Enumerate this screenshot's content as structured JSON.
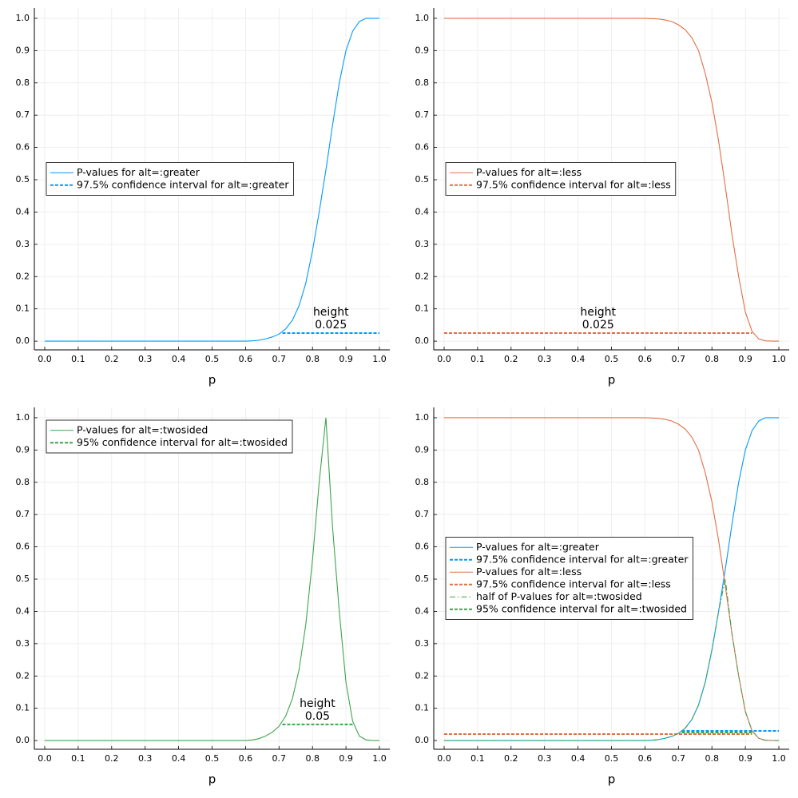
{
  "chart_data": [
    {
      "type": "line",
      "xlabel": "p",
      "legend": "left",
      "grid": true,
      "xlim": [
        -0.031,
        1.031
      ],
      "ylim": [
        -0.027,
        1.032
      ],
      "xticks": [
        {
          "value": 0,
          "label": "0.0"
        },
        0.1,
        0.2,
        0.3,
        0.4,
        0.5,
        0.6,
        0.7,
        0.8,
        0.9,
        {
          "value": 1,
          "label": "1.0"
        }
      ],
      "yticks": [
        {
          "value": 0,
          "label": "0.0"
        },
        0.1,
        0.2,
        0.3,
        0.4,
        0.5,
        0.6,
        0.7,
        0.8,
        0.9,
        {
          "value": 1,
          "label": "1.0"
        }
      ],
      "x": [
        0,
        0.1,
        0.2,
        0.3,
        0.4,
        0.5,
        0.6,
        0.62,
        0.64,
        0.66,
        0.68,
        0.7,
        0.72,
        0.74,
        0.76,
        0.78,
        0.8,
        0.82,
        0.84,
        0.86,
        0.88,
        0.9,
        0.92,
        0.94,
        0.96,
        0.98,
        1
      ],
      "series": [
        {
          "name": "P-values for alt=:greater",
          "color": "#009afa",
          "style": "solid",
          "values": [
            0,
            0,
            0,
            0,
            0,
            0,
            0,
            0.001,
            0.003,
            0.007,
            0.013,
            0.022,
            0.038,
            0.065,
            0.11,
            0.18,
            0.28,
            0.4,
            0.53,
            0.67,
            0.8,
            0.9,
            0.96,
            0.99,
            1,
            1,
            1
          ]
        },
        {
          "name": "97.5% confidence interval for alt=:greater",
          "color": "#009afa",
          "style": "dashed",
          "x": [
            0.71,
            1
          ],
          "values": [
            0.025,
            0.025
          ],
          "annotation": [
            "height",
            "0.025"
          ]
        }
      ]
    },
    {
      "type": "line",
      "xlabel": "p",
      "legend": "left",
      "grid": true,
      "xlim": [
        -0.031,
        1.031
      ],
      "ylim": [
        -0.027,
        1.032
      ],
      "xticks": [
        {
          "value": 0,
          "label": "0.0"
        },
        0.1,
        0.2,
        0.3,
        0.4,
        0.5,
        0.6,
        0.7,
        0.8,
        0.9,
        {
          "value": 1,
          "label": "1.0"
        }
      ],
      "yticks": [
        {
          "value": 0,
          "label": "0.0"
        },
        0.1,
        0.2,
        0.3,
        0.4,
        0.5,
        0.6,
        0.7,
        0.8,
        0.9,
        {
          "value": 1,
          "label": "1.0"
        }
      ],
      "x": [
        0,
        0.1,
        0.2,
        0.3,
        0.4,
        0.5,
        0.6,
        0.62,
        0.64,
        0.66,
        0.68,
        0.7,
        0.72,
        0.74,
        0.76,
        0.78,
        0.8,
        0.82,
        0.84,
        0.86,
        0.88,
        0.9,
        0.92,
        0.94,
        0.96,
        0.98,
        1
      ],
      "series": [
        {
          "name": "P-values for alt=:less",
          "color": "#e26f46",
          "style": "solid",
          "values": [
            1,
            1,
            1,
            1,
            1,
            1,
            1,
            0.999,
            0.998,
            0.995,
            0.99,
            0.98,
            0.965,
            0.94,
            0.9,
            0.83,
            0.74,
            0.62,
            0.48,
            0.33,
            0.2,
            0.09,
            0.03,
            0.007,
            0.001,
            0,
            0
          ]
        },
        {
          "name": "97.5% confidence interval for alt=:less",
          "color": "#e26f46",
          "style": "dashed",
          "x": [
            0,
            0.92
          ],
          "values": [
            0.025,
            0.025
          ],
          "annotation": [
            "height",
            "0.025"
          ]
        }
      ]
    },
    {
      "type": "line",
      "xlabel": "p",
      "legend": "top left",
      "grid": true,
      "xlim": [
        -0.031,
        1.031
      ],
      "ylim": [
        -0.027,
        1.032
      ],
      "xticks": [
        {
          "value": 0,
          "label": "0.0"
        },
        0.1,
        0.2,
        0.3,
        0.4,
        0.5,
        0.6,
        0.7,
        0.8,
        0.9,
        {
          "value": 1,
          "label": "1.0"
        }
      ],
      "yticks": [
        {
          "value": 0,
          "label": "0.0"
        },
        0.1,
        0.2,
        0.3,
        0.4,
        0.5,
        0.6,
        0.7,
        0.8,
        0.9,
        {
          "value": 1,
          "label": "1.0"
        }
      ],
      "x": [
        0,
        0.1,
        0.2,
        0.3,
        0.4,
        0.5,
        0.6,
        0.62,
        0.64,
        0.66,
        0.68,
        0.7,
        0.72,
        0.74,
        0.76,
        0.78,
        0.8,
        0.82,
        0.84,
        0.86,
        0.88,
        0.9,
        0.92,
        0.94,
        0.96,
        0.98,
        1
      ],
      "series": [
        {
          "name": "P-values for alt=:twosided",
          "color": "#3ea44e",
          "style": "solid",
          "values": [
            0,
            0,
            0,
            0,
            0,
            0,
            0,
            0.002,
            0.006,
            0.014,
            0.026,
            0.044,
            0.076,
            0.13,
            0.22,
            0.36,
            0.56,
            0.8,
            1,
            0.66,
            0.4,
            0.18,
            0.06,
            0.014,
            0.002,
            0,
            0
          ]
        },
        {
          "name": "95% confidence interval for alt=:twosided",
          "color": "#3ea44e",
          "style": "dashed",
          "x": [
            0.71,
            0.92
          ],
          "values": [
            0.05,
            0.05
          ],
          "annotation": [
            "height",
            "0.05"
          ]
        }
      ]
    },
    {
      "type": "line",
      "xlabel": "p",
      "legend": "left",
      "grid": true,
      "xlim": [
        -0.031,
        1.031
      ],
      "ylim": [
        -0.027,
        1.032
      ],
      "xticks": [
        {
          "value": 0,
          "label": "0.0"
        },
        0.1,
        0.2,
        0.3,
        0.4,
        0.5,
        0.6,
        0.7,
        0.8,
        0.9,
        {
          "value": 1,
          "label": "1.0"
        }
      ],
      "yticks": [
        {
          "value": 0,
          "label": "0.0"
        },
        0.1,
        0.2,
        0.3,
        0.4,
        0.5,
        0.6,
        0.7,
        0.8,
        0.9,
        {
          "value": 1,
          "label": "1.0"
        }
      ],
      "x": [
        0,
        0.1,
        0.2,
        0.3,
        0.4,
        0.5,
        0.6,
        0.62,
        0.64,
        0.66,
        0.68,
        0.7,
        0.72,
        0.74,
        0.76,
        0.78,
        0.8,
        0.82,
        0.84,
        0.86,
        0.88,
        0.9,
        0.92,
        0.94,
        0.96,
        0.98,
        1
      ],
      "series": [
        {
          "name": "P-values for alt=:greater",
          "color": "#009afa",
          "style": "solid",
          "values": [
            0,
            0,
            0,
            0,
            0,
            0,
            0,
            0.001,
            0.003,
            0.007,
            0.013,
            0.022,
            0.038,
            0.065,
            0.11,
            0.18,
            0.28,
            0.4,
            0.53,
            0.67,
            0.8,
            0.9,
            0.96,
            0.99,
            1,
            1,
            1
          ]
        },
        {
          "name": "97.5% confidence interval for alt=:greater",
          "color": "#009afa",
          "style": "dashed",
          "x": [
            0.71,
            1
          ],
          "values": [
            0.03,
            0.03
          ]
        },
        {
          "name": "P-values for alt=:less",
          "color": "#e26f46",
          "style": "solid",
          "values": [
            1,
            1,
            1,
            1,
            1,
            1,
            1,
            0.999,
            0.998,
            0.995,
            0.99,
            0.98,
            0.965,
            0.94,
            0.9,
            0.83,
            0.74,
            0.62,
            0.48,
            0.33,
            0.2,
            0.09,
            0.03,
            0.007,
            0.001,
            0,
            0
          ]
        },
        {
          "name": "97.5% confidence interval for alt=:less",
          "color": "#e26f46",
          "style": "dashed",
          "x": [
            0,
            0.92
          ],
          "values": [
            0.02,
            0.02
          ]
        },
        {
          "name": "half of P-values for alt=:twosided",
          "color": "#3ea44e",
          "style": "dashdot",
          "values": [
            0,
            0,
            0,
            0,
            0,
            0,
            0,
            0.001,
            0.003,
            0.007,
            0.013,
            0.022,
            0.038,
            0.065,
            0.11,
            0.18,
            0.28,
            0.4,
            0.5,
            0.33,
            0.2,
            0.09,
            0.03,
            0.007,
            0.001,
            0,
            0
          ]
        },
        {
          "name": "95% confidence interval for alt=:twosided",
          "color": "#3ea44e",
          "style": "dashed",
          "x": [
            0.71,
            0.92
          ],
          "values": [
            0.025,
            0.025
          ]
        }
      ]
    }
  ]
}
